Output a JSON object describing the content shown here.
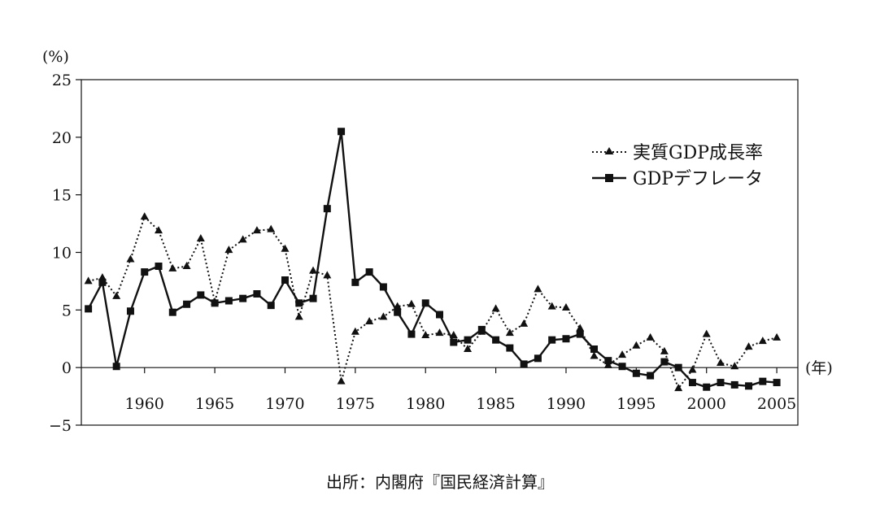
{
  "chart_data": {
    "type": "line",
    "ylabel": "(%)",
    "xlabel": "(年)",
    "ylim": [
      -5,
      25
    ],
    "xlim": [
      1955.5,
      2006.5
    ],
    "yticks": [
      -5,
      0,
      5,
      10,
      15,
      20,
      25
    ],
    "ytick_labels": [
      "−5",
      "0",
      "5",
      "10",
      "15",
      "20",
      "25"
    ],
    "xticks": [
      1960,
      1965,
      1970,
      1975,
      1980,
      1985,
      1990,
      1995,
      2000,
      2005
    ],
    "xtick_labels": [
      "1960",
      "1965",
      "1970",
      "1975",
      "1980",
      "1985",
      "1990",
      "1995",
      "2000",
      "2005"
    ],
    "legend_position": "upper-right",
    "source": "出所：内閣府『国民経済計算』",
    "series": [
      {
        "name": "実質GDP成長率",
        "style": "dotted",
        "marker": "triangle",
        "x": [
          1956,
          1957,
          1958,
          1959,
          1960,
          1961,
          1962,
          1963,
          1964,
          1965,
          1966,
          1967,
          1968,
          1969,
          1970,
          1971,
          1972,
          1973,
          1974,
          1975,
          1976,
          1977,
          1978,
          1979,
          1980,
          1981,
          1982,
          1983,
          1984,
          1985,
          1986,
          1987,
          1988,
          1989,
          1990,
          1991,
          1992,
          1993,
          1994,
          1995,
          1996,
          1997,
          1998,
          1999,
          2000,
          2001,
          2002,
          2003,
          2004,
          2005
        ],
        "values": [
          7.5,
          7.8,
          6.2,
          9.4,
          13.1,
          11.9,
          8.6,
          8.8,
          11.2,
          5.7,
          10.2,
          11.1,
          11.9,
          12.0,
          10.3,
          4.4,
          8.4,
          8.0,
          -1.2,
          3.1,
          4.0,
          4.4,
          5.3,
          5.5,
          2.8,
          3.0,
          2.8,
          1.6,
          3.1,
          5.1,
          3.0,
          3.8,
          6.8,
          5.3,
          5.2,
          3.4,
          1.0,
          0.2,
          1.1,
          1.9,
          2.6,
          1.4,
          -1.8,
          -0.2,
          2.9,
          0.4,
          0.1,
          1.8,
          2.3,
          2.6
        ]
      },
      {
        "name": "GDPデフレータ",
        "style": "solid",
        "marker": "square",
        "x": [
          1956,
          1957,
          1958,
          1959,
          1960,
          1961,
          1962,
          1963,
          1964,
          1965,
          1966,
          1967,
          1968,
          1969,
          1970,
          1971,
          1972,
          1973,
          1974,
          1975,
          1976,
          1977,
          1978,
          1979,
          1980,
          1981,
          1982,
          1983,
          1984,
          1985,
          1986,
          1987,
          1988,
          1989,
          1990,
          1991,
          1992,
          1993,
          1994,
          1995,
          1996,
          1997,
          1998,
          1999,
          2000,
          2001,
          2002,
          2003,
          2004,
          2005
        ],
        "values": [
          5.1,
          7.4,
          0.1,
          4.9,
          8.3,
          8.8,
          4.8,
          5.5,
          6.3,
          5.6,
          5.8,
          6.0,
          6.4,
          5.4,
          7.6,
          5.6,
          6.0,
          13.8,
          20.5,
          7.4,
          8.3,
          7.0,
          4.8,
          2.9,
          5.6,
          4.6,
          2.2,
          2.4,
          3.3,
          2.4,
          1.7,
          0.3,
          0.8,
          2.4,
          2.5,
          2.9,
          1.6,
          0.6,
          0.1,
          -0.5,
          -0.7,
          0.5,
          0.0,
          -1.3,
          -1.7,
          -1.3,
          -1.5,
          -1.6,
          -1.2,
          -1.3
        ]
      }
    ]
  }
}
